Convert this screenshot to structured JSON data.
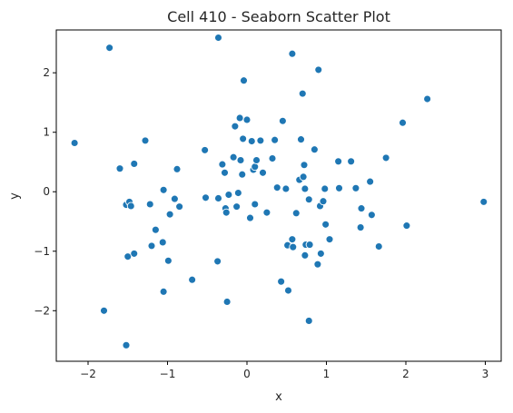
{
  "chart_data": {
    "type": "scatter",
    "title": "Cell 410 - Seaborn Scatter Plot",
    "xlabel": "x",
    "ylabel": "y",
    "xlim": [
      -2.4,
      3.2
    ],
    "ylim": [
      -2.85,
      2.72
    ],
    "xticks": [
      -2,
      -1,
      0,
      1,
      2,
      3
    ],
    "yticks": [
      -2,
      -1,
      0,
      1,
      2
    ],
    "grid": false,
    "legend": "none",
    "color": "#1f77b4",
    "points": [
      {
        "x": -2.17,
        "y": 0.82
      },
      {
        "x": -1.73,
        "y": 2.42
      },
      {
        "x": -1.6,
        "y": 0.39
      },
      {
        "x": -1.52,
        "y": -0.22
      },
      {
        "x": -1.48,
        "y": -0.17
      },
      {
        "x": -1.46,
        "y": -0.24
      },
      {
        "x": -1.42,
        "y": 0.47
      },
      {
        "x": -1.28,
        "y": 0.86
      },
      {
        "x": -1.22,
        "y": -0.21
      },
      {
        "x": -1.15,
        "y": -0.64
      },
      {
        "x": -1.05,
        "y": 0.03
      },
      {
        "x": -0.97,
        "y": -0.38
      },
      {
        "x": -0.91,
        "y": -0.12
      },
      {
        "x": -0.88,
        "y": 0.38
      },
      {
        "x": -0.85,
        "y": -0.25
      },
      {
        "x": -1.2,
        "y": -0.91
      },
      {
        "x": -1.06,
        "y": -0.85
      },
      {
        "x": -0.99,
        "y": -1.16
      },
      {
        "x": -1.5,
        "y": -1.09
      },
      {
        "x": -1.42,
        "y": -1.04
      },
      {
        "x": -1.05,
        "y": -1.68
      },
      {
        "x": -1.8,
        "y": -2.0
      },
      {
        "x": -1.52,
        "y": -2.58
      },
      {
        "x": -0.69,
        "y": -1.48
      },
      {
        "x": -0.37,
        "y": -1.17
      },
      {
        "x": -0.25,
        "y": -1.85
      },
      {
        "x": -0.36,
        "y": 2.59
      },
      {
        "x": -0.04,
        "y": 1.87
      },
      {
        "x": -0.53,
        "y": 0.7
      },
      {
        "x": -0.52,
        "y": -0.1
      },
      {
        "x": -0.36,
        "y": -0.11
      },
      {
        "x": -0.31,
        "y": 0.46
      },
      {
        "x": -0.28,
        "y": 0.32
      },
      {
        "x": -0.27,
        "y": -0.28
      },
      {
        "x": -0.26,
        "y": -0.35
      },
      {
        "x": -0.23,
        "y": -0.05
      },
      {
        "x": -0.17,
        "y": 0.58
      },
      {
        "x": -0.15,
        "y": 1.1
      },
      {
        "x": -0.13,
        "y": -0.25
      },
      {
        "x": -0.11,
        "y": -0.02
      },
      {
        "x": -0.09,
        "y": 1.24
      },
      {
        "x": -0.08,
        "y": 0.53
      },
      {
        "x": -0.06,
        "y": 0.29
      },
      {
        "x": -0.05,
        "y": 0.89
      },
      {
        "x": 0.0,
        "y": 1.21
      },
      {
        "x": 0.04,
        "y": -0.44
      },
      {
        "x": 0.06,
        "y": 0.85
      },
      {
        "x": 0.08,
        "y": 0.37
      },
      {
        "x": 0.1,
        "y": 0.42
      },
      {
        "x": 0.12,
        "y": 0.53
      },
      {
        "x": 0.1,
        "y": -0.21
      },
      {
        "x": 0.17,
        "y": 0.86
      },
      {
        "x": 0.2,
        "y": 0.32
      },
      {
        "x": 0.25,
        "y": -0.35
      },
      {
        "x": 0.32,
        "y": 0.56
      },
      {
        "x": 0.35,
        "y": 0.87
      },
      {
        "x": 0.38,
        "y": 0.07
      },
      {
        "x": 0.45,
        "y": 1.19
      },
      {
        "x": 0.49,
        "y": 0.05
      },
      {
        "x": 0.51,
        "y": -0.9
      },
      {
        "x": 0.52,
        "y": -1.66
      },
      {
        "x": 0.43,
        "y": -1.51
      },
      {
        "x": 0.57,
        "y": 2.32
      },
      {
        "x": 0.57,
        "y": -0.8
      },
      {
        "x": 0.58,
        "y": -0.93
      },
      {
        "x": 0.62,
        "y": -0.36
      },
      {
        "x": 0.66,
        "y": 0.2
      },
      {
        "x": 0.68,
        "y": 0.88
      },
      {
        "x": 0.7,
        "y": 1.65
      },
      {
        "x": 0.71,
        "y": 0.25
      },
      {
        "x": 0.72,
        "y": 0.45
      },
      {
        "x": 0.73,
        "y": 0.05
      },
      {
        "x": 0.74,
        "y": -0.89
      },
      {
        "x": 0.73,
        "y": -1.07
      },
      {
        "x": 0.78,
        "y": -0.13
      },
      {
        "x": 0.79,
        "y": -0.89
      },
      {
        "x": 0.78,
        "y": -2.17
      },
      {
        "x": 0.85,
        "y": 0.71
      },
      {
        "x": 0.89,
        "y": -1.22
      },
      {
        "x": 0.9,
        "y": 2.05
      },
      {
        "x": 0.92,
        "y": -0.24
      },
      {
        "x": 0.93,
        "y": -1.04
      },
      {
        "x": 0.96,
        "y": -0.16
      },
      {
        "x": 0.98,
        "y": 0.05
      },
      {
        "x": 0.99,
        "y": -0.55
      },
      {
        "x": 1.04,
        "y": -0.8
      },
      {
        "x": 1.15,
        "y": 0.51
      },
      {
        "x": 1.16,
        "y": 0.06
      },
      {
        "x": 1.31,
        "y": 0.51
      },
      {
        "x": 1.37,
        "y": 0.06
      },
      {
        "x": 1.43,
        "y": -0.6
      },
      {
        "x": 1.44,
        "y": -0.28
      },
      {
        "x": 1.55,
        "y": 0.17
      },
      {
        "x": 1.57,
        "y": -0.39
      },
      {
        "x": 1.66,
        "y": -0.92
      },
      {
        "x": 1.75,
        "y": 0.57
      },
      {
        "x": 1.96,
        "y": 1.16
      },
      {
        "x": 2.01,
        "y": -0.57
      },
      {
        "x": 2.27,
        "y": 1.56
      },
      {
        "x": 2.98,
        "y": -0.17
      }
    ]
  }
}
